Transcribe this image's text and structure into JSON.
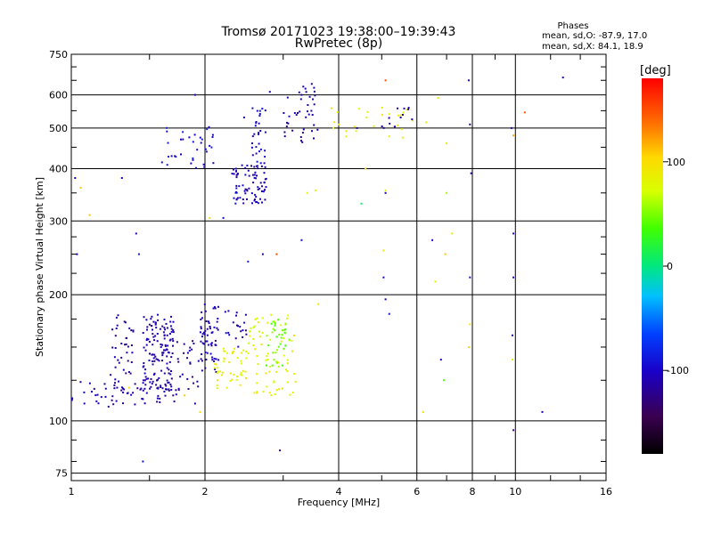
{
  "chart_data": {
    "type": "scatter",
    "title": "Tromsø 20171023 19:38:00–19:39:43",
    "subtitle": "RwPretec (8p)",
    "stats": {
      "header": "Phases",
      "line1": "mean, sd,O: -87.9, 17.0",
      "line2": "mean, sd,X:  84.1, 18.9"
    },
    "xlabel": "Frequency [MHz]",
    "ylabel": "Stationary phase Virtual Height [km]",
    "x_scale": "log2",
    "y_scale": "log",
    "xlim": [
      1,
      16
    ],
    "ylim": [
      72,
      750
    ],
    "x_ticks": [
      1,
      2,
      4,
      6,
      8,
      10,
      16
    ],
    "y_ticks": [
      75,
      100,
      200,
      300,
      400,
      500,
      600,
      750
    ],
    "grid": true,
    "colorbar": {
      "label": "[deg]",
      "range": [
        -180,
        180
      ],
      "ticks": [
        100,
        0,
        -100
      ]
    },
    "clusters": [
      {
        "x": [
          1.0,
          1.75
        ],
        "y": [
          108,
          125
        ],
        "phase": -110,
        "n": 55
      },
      {
        "x": [
          1.22,
          1.38
        ],
        "y": [
          115,
          180
        ],
        "phase": -115,
        "n": 45
      },
      {
        "x": [
          1.45,
          1.7
        ],
        "y": [
          118,
          180
        ],
        "phase": -112,
        "n": 140
      },
      {
        "x": [
          1.72,
          1.95
        ],
        "y": [
          118,
          160
        ],
        "phase": -115,
        "n": 25
      },
      {
        "x": [
          1.95,
          2.15
        ],
        "y": [
          130,
          190
        ],
        "phase": -110,
        "n": 60
      },
      {
        "x": [
          2.2,
          2.5
        ],
        "y": [
          150,
          185
        ],
        "phase": -105,
        "n": 20
      },
      {
        "x": [
          2.1,
          2.5
        ],
        "y": [
          118,
          150
        ],
        "phase": 85,
        "n": 45
      },
      {
        "x": [
          2.5,
          3.2
        ],
        "y": [
          115,
          180
        ],
        "phase": 80,
        "n": 70
      },
      {
        "x": [
          2.75,
          3.1
        ],
        "y": [
          135,
          175
        ],
        "phase": 45,
        "n": 35
      },
      {
        "x": [
          2.3,
          2.75
        ],
        "y": [
          330,
          410
        ],
        "phase": -105,
        "n": 80
      },
      {
        "x": [
          2.55,
          2.75
        ],
        "y": [
          410,
          560
        ],
        "phase": -100,
        "n": 30
      },
      {
        "x": [
          3.0,
          3.6
        ],
        "y": [
          460,
          640
        ],
        "phase": -110,
        "n": 40
      },
      {
        "x": [
          1.6,
          2.15
        ],
        "y": [
          400,
          520
        ],
        "phase": -95,
        "n": 35
      },
      {
        "x": [
          3.8,
          6.3
        ],
        "y": [
          470,
          560
        ],
        "phase": 85,
        "n": 25
      },
      {
        "x": [
          5.0,
          6.0
        ],
        "y": [
          500,
          560
        ],
        "phase": -115,
        "n": 12
      }
    ],
    "scattered_points": [
      [
        1.3,
        380,
        -100
      ],
      [
        1.4,
        280,
        -100
      ],
      [
        1.42,
        250,
        -90
      ],
      [
        1.45,
        80,
        -90
      ],
      [
        1.02,
        380,
        -100
      ],
      [
        1.05,
        360,
        110
      ],
      [
        1.1,
        310,
        110
      ],
      [
        1.03,
        250,
        -100
      ],
      [
        1.9,
        600,
        -110
      ],
      [
        2.05,
        305,
        100
      ],
      [
        2.2,
        305,
        -90
      ],
      [
        2.5,
        240,
        -80
      ],
      [
        2.7,
        250,
        -120
      ],
      [
        2.9,
        250,
        150
      ],
      [
        2.95,
        85,
        -130
      ],
      [
        3.3,
        270,
        -90
      ],
      [
        3.4,
        350,
        80
      ],
      [
        3.3,
        600,
        -110
      ],
      [
        2.8,
        610,
        -115
      ],
      [
        2.45,
        530,
        -100
      ],
      [
        4.5,
        330,
        10
      ],
      [
        4.6,
        400,
        100
      ],
      [
        5.1,
        355,
        80
      ],
      [
        5.1,
        350,
        -110
      ],
      [
        5.05,
        220,
        -100
      ],
      [
        5.1,
        195,
        -110
      ],
      [
        5.2,
        180,
        -90
      ],
      [
        5.05,
        255,
        90
      ],
      [
        5.1,
        650,
        150
      ],
      [
        5.2,
        540,
        80
      ],
      [
        6.2,
        105,
        100
      ],
      [
        6.5,
        270,
        -100
      ],
      [
        6.6,
        215,
        80
      ],
      [
        6.7,
        590,
        90
      ],
      [
        6.8,
        140,
        -110
      ],
      [
        6.9,
        125,
        40
      ],
      [
        6.95,
        250,
        110
      ],
      [
        7.0,
        350,
        60
      ],
      [
        7.0,
        460,
        85
      ],
      [
        7.2,
        280,
        90
      ],
      [
        7.85,
        650,
        -110
      ],
      [
        7.9,
        510,
        -120
      ],
      [
        7.95,
        390,
        -120
      ],
      [
        7.9,
        220,
        -90
      ],
      [
        7.9,
        170,
        100
      ],
      [
        7.85,
        150,
        100
      ],
      [
        9.8,
        500,
        -110
      ],
      [
        9.9,
        480,
        120
      ],
      [
        9.9,
        280,
        -100
      ],
      [
        9.9,
        220,
        -100
      ],
      [
        9.85,
        160,
        -110
      ],
      [
        9.9,
        95,
        -130
      ],
      [
        9.85,
        140,
        80
      ],
      [
        10.5,
        545,
        150
      ],
      [
        11.5,
        105,
        -105
      ],
      [
        12.8,
        660,
        -100
      ],
      [
        1.8,
        115,
        110
      ],
      [
        1.9,
        110,
        -110
      ],
      [
        1.95,
        105,
        100
      ],
      [
        1.35,
        120,
        100
      ],
      [
        3.6,
        190,
        100
      ],
      [
        3.55,
        355,
        90
      ],
      [
        4.0,
        510,
        85
      ],
      [
        4.4,
        500,
        -115
      ]
    ]
  }
}
